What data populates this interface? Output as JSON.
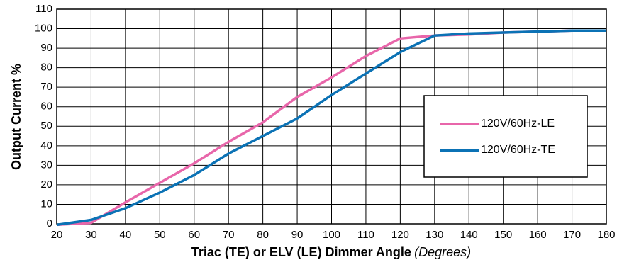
{
  "chart_data": {
    "type": "line",
    "x_label": "Triac (TE) or ELV (LE) Dimmer Angle",
    "x_label_unit": "(Degrees)",
    "y_label": "Output Current %",
    "x": [
      20,
      30,
      40,
      50,
      60,
      70,
      80,
      90,
      100,
      110,
      120,
      130,
      140,
      150,
      160,
      170,
      180
    ],
    "series": [
      {
        "name": "120V/60Hz-LE",
        "color": "#e866aa",
        "values": [
          -0.5,
          0.5,
          11,
          21,
          31,
          42,
          52,
          65,
          75,
          86,
          95,
          96.5,
          97,
          98,
          98.5,
          99,
          99
        ]
      },
      {
        "name": "120V/60Hz-TE",
        "color": "#0b72b5",
        "values": [
          -0.5,
          2,
          8,
          16,
          25,
          36,
          45,
          54,
          66,
          77,
          88,
          96.5,
          97.5,
          98,
          98.5,
          99,
          99
        ]
      }
    ],
    "xlim": [
      20,
      180
    ],
    "xticks": [
      20,
      30,
      40,
      50,
      60,
      70,
      80,
      90,
      100,
      110,
      120,
      130,
      140,
      150,
      160,
      170,
      180
    ],
    "ylim": [
      0,
      110
    ],
    "yticks": [
      0,
      10,
      20,
      30,
      40,
      50,
      60,
      70,
      80,
      90,
      100,
      110
    ],
    "grid": true,
    "legend": "right"
  }
}
